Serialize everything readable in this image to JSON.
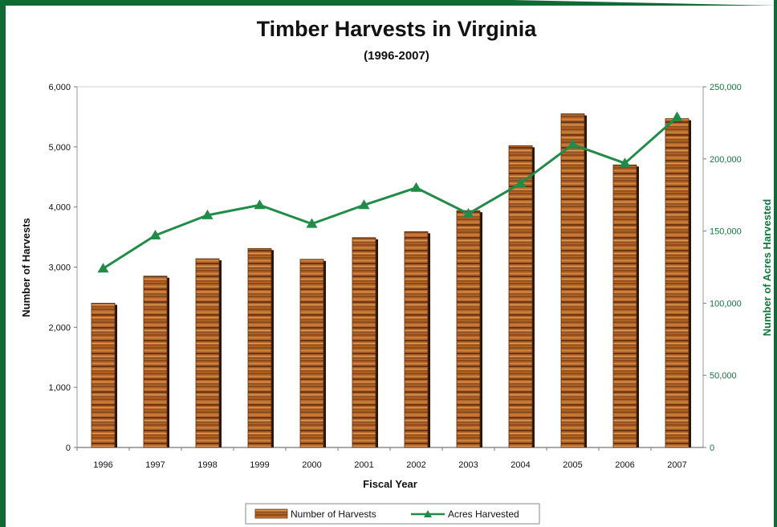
{
  "chart_data": {
    "type": "bar",
    "title": "Timber Harvests in Virginia",
    "subtitle": "(1996-2007)",
    "xlabel": "Fiscal Year",
    "ylabel": "Number of Harvests",
    "y2label": "Number of Acres Harvested",
    "categories": [
      "1996",
      "1997",
      "1998",
      "1999",
      "2000",
      "2001",
      "2002",
      "2003",
      "2004",
      "2005",
      "2006",
      "2007"
    ],
    "ylim": [
      0,
      6000
    ],
    "y2lim": [
      0,
      250000
    ],
    "yticks": [
      "0",
      "1,000",
      "2,000",
      "3,000",
      "4,000",
      "5,000",
      "6,000"
    ],
    "y2ticks": [
      "0",
      "50,000",
      "100,000",
      "150,000",
      "200,000",
      "250,000"
    ],
    "series": [
      {
        "name": "Number of Harvests",
        "type": "bar",
        "axis": "left",
        "values": [
          2400,
          2850,
          3140,
          3310,
          3130,
          3490,
          3590,
          3940,
          5020,
          5550,
          4700,
          5470
        ]
      },
      {
        "name": "Acres Harvested",
        "type": "line",
        "axis": "right",
        "values": [
          124000,
          147000,
          161000,
          168000,
          155000,
          168000,
          180000,
          162000,
          183000,
          210000,
          197000,
          229000
        ]
      }
    ],
    "grid": "horizontal-top-only",
    "legend": "bottom-center",
    "colors": {
      "bar": "#b8682a",
      "bar_dark": "#6b3410",
      "line": "#1f8c47",
      "frame": "#0f6a33"
    }
  }
}
